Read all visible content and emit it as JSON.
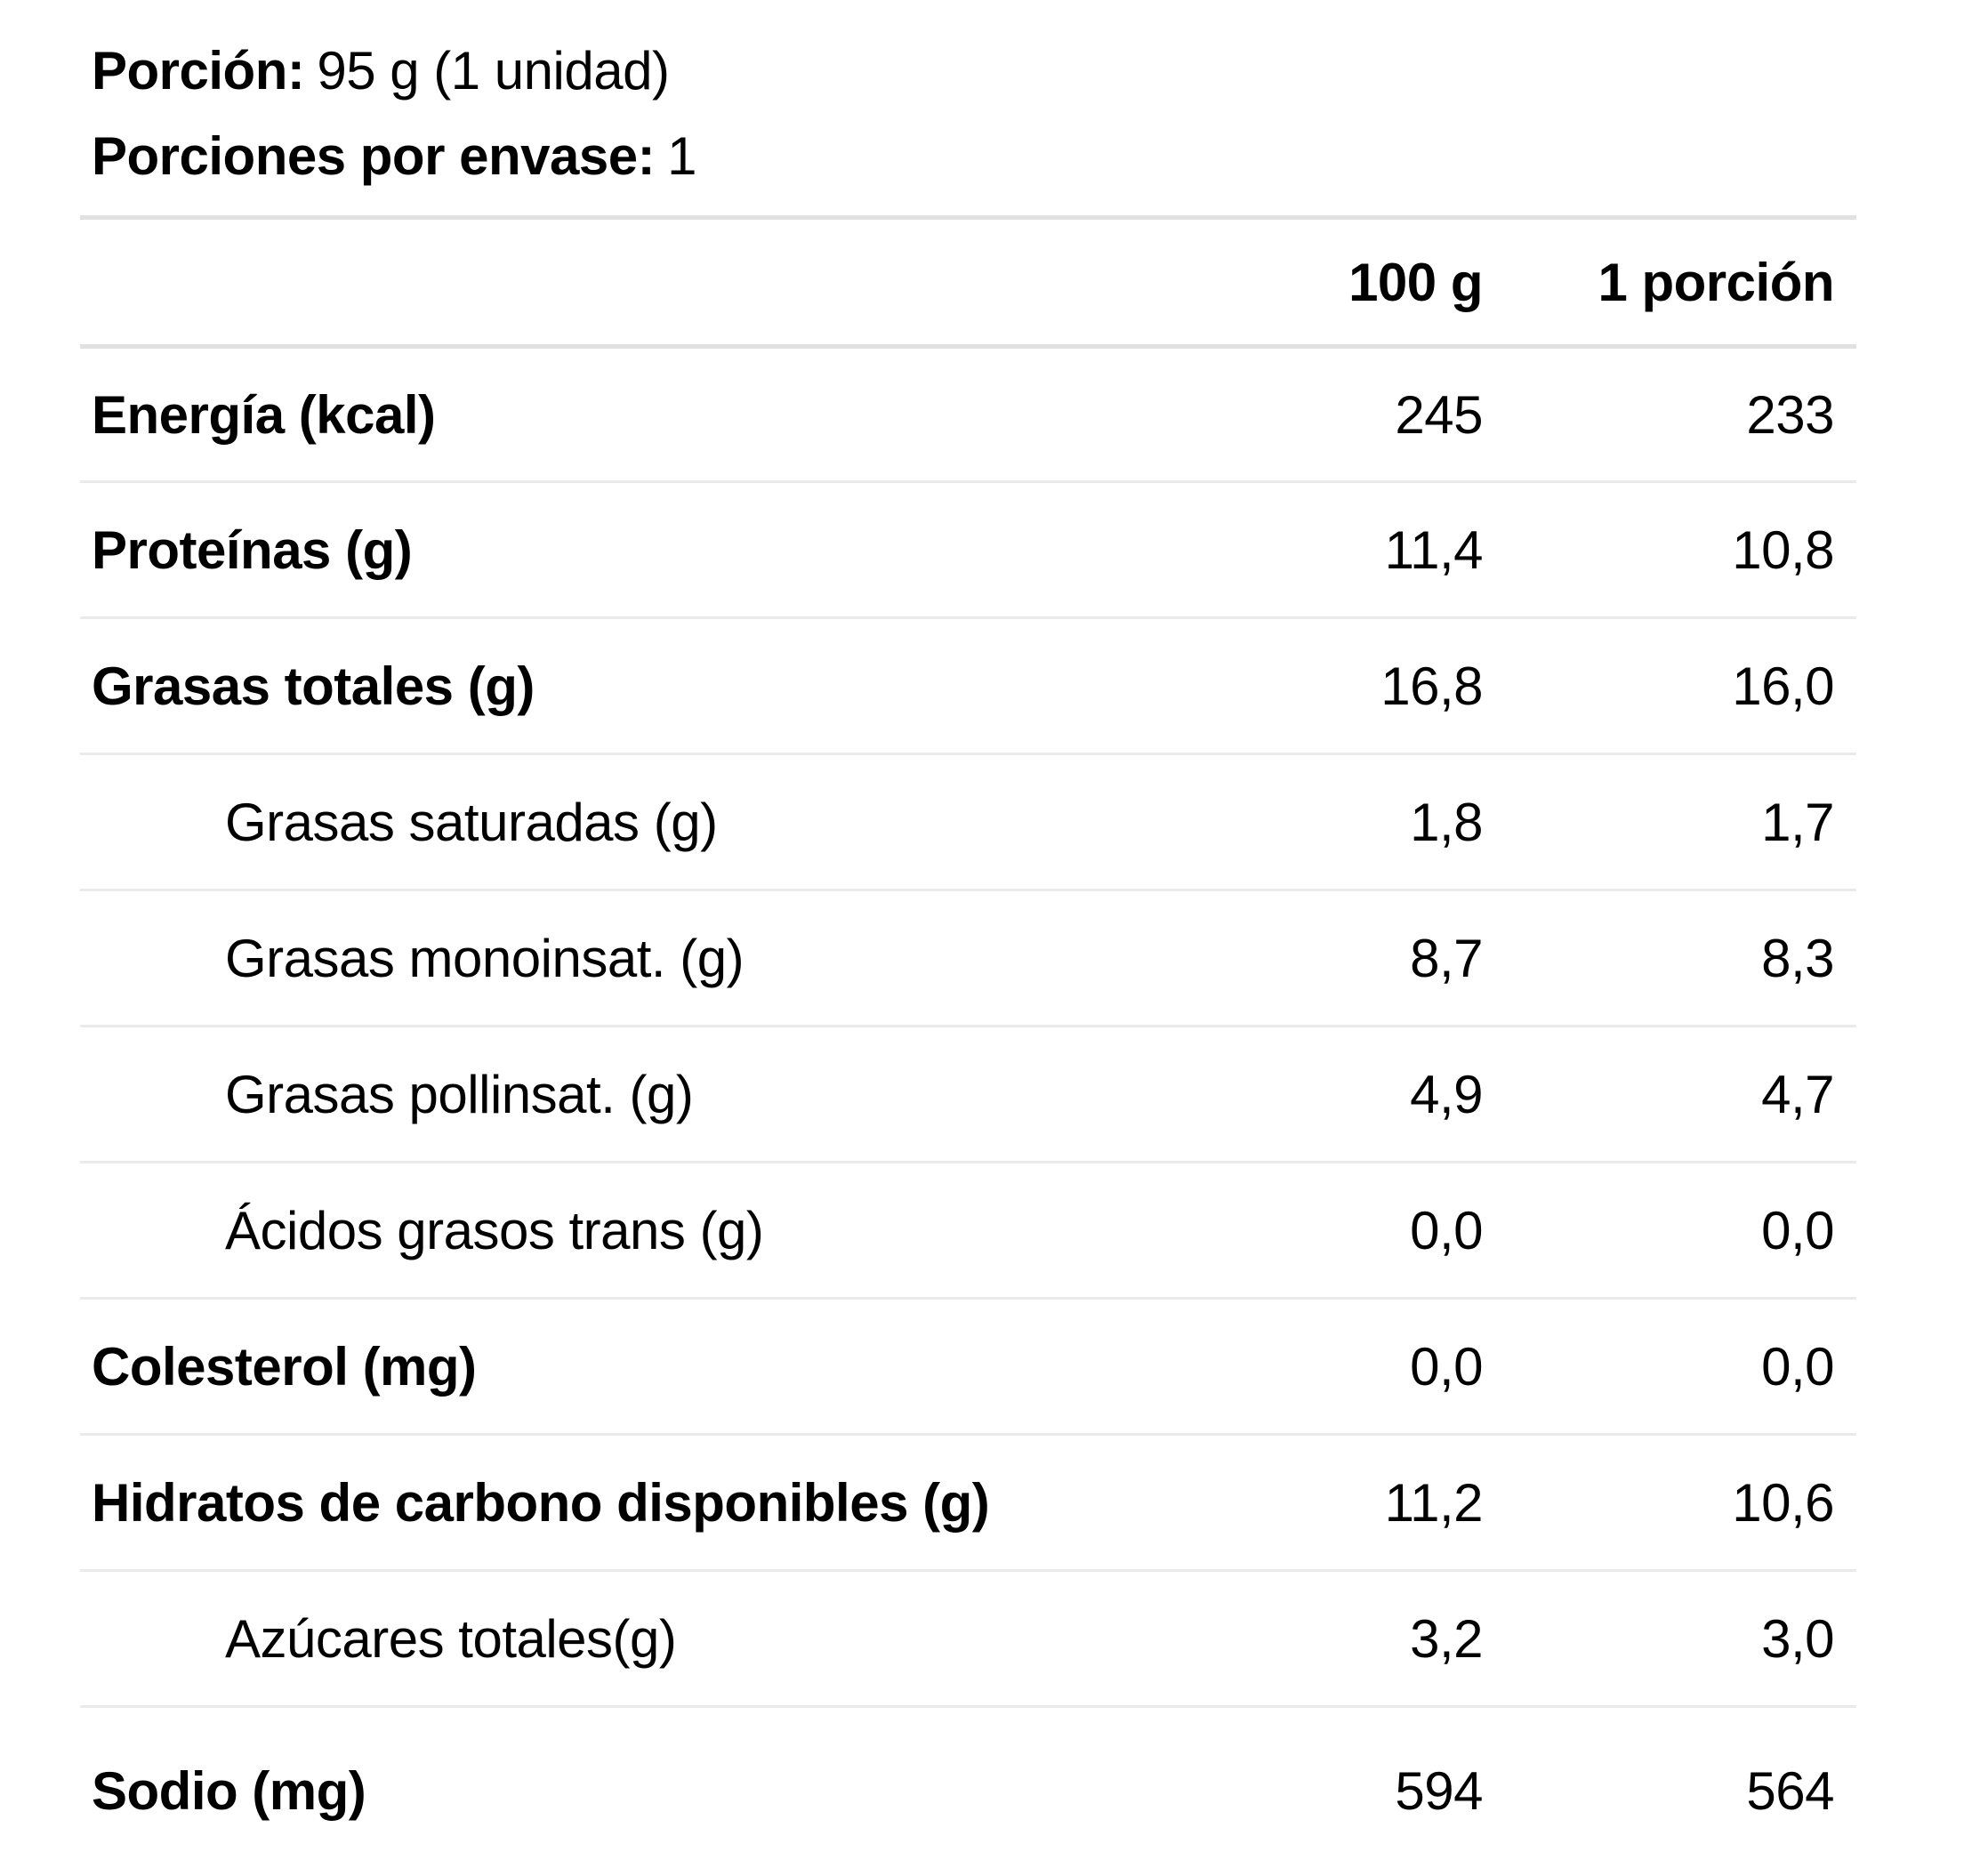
{
  "meta": {
    "portion_label": "Porción:",
    "portion_value": "95 g (1 unidad)",
    "servings_label": "Porciones por envase:",
    "servings_value": "1"
  },
  "table": {
    "columns": [
      "100 g",
      "1 porción"
    ],
    "rows": [
      {
        "label": "Energía (kcal)",
        "per100": "245",
        "portion": "233",
        "bold": true,
        "indent": false
      },
      {
        "label": "Proteínas (g)",
        "per100": "11,4",
        "portion": "10,8",
        "bold": true,
        "indent": false
      },
      {
        "label": "Grasas totales (g)",
        "per100": "16,8",
        "portion": "16,0",
        "bold": true,
        "indent": false
      },
      {
        "label": "Grasas saturadas (g)",
        "per100": "1,8",
        "portion": "1,7",
        "bold": false,
        "indent": true
      },
      {
        "label": "Grasas monoinsat. (g)",
        "per100": "8,7",
        "portion": "8,3",
        "bold": false,
        "indent": true
      },
      {
        "label": "Grasas pollinsat. (g)",
        "per100": "4,9",
        "portion": "4,7",
        "bold": false,
        "indent": true
      },
      {
        "label": "Ácidos grasos trans (g)",
        "per100": "0,0",
        "portion": "0,0",
        "bold": false,
        "indent": true
      },
      {
        "label": "Colesterol (mg)",
        "per100": "0,0",
        "portion": "0,0",
        "bold": true,
        "indent": false
      },
      {
        "label": "Hidratos de carbono disponibles (g)",
        "per100": "11,2",
        "portion": "10,6",
        "bold": true,
        "indent": false
      },
      {
        "label": "Azúcares totales(g)",
        "per100": "3,2",
        "portion": "3,0",
        "bold": false,
        "indent": true
      },
      {
        "label": "Sodio (mg)",
        "per100": "594",
        "portion": "564",
        "bold": true,
        "indent": false
      }
    ]
  },
  "colors": {
    "text": "#000000",
    "background": "#ffffff",
    "line_strong": "#e1e1e1",
    "line_soft": "#eaeaea"
  }
}
